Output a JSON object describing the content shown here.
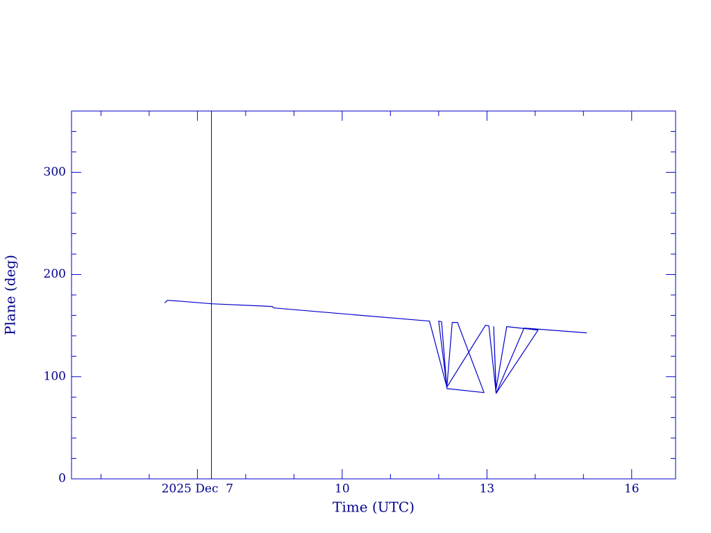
{
  "chart_data": {
    "type": "line",
    "xlabel": "Time (UTC)",
    "ylabel": "Plane (deg)",
    "x": [
      6.32,
      6.38,
      6.59,
      7.29,
      8.55,
      8.58,
      11.81,
      12.17,
      12.0,
      12.06,
      12.17,
      12.94,
      12.39,
      12.28,
      12.17,
      12.97,
      13.04,
      13.19,
      13.14,
      13.19,
      13.41,
      14.06,
      13.19,
      13.77,
      15.07
    ],
    "series": [
      {
        "color": "#0000cc",
        "values": [
          172.1,
          174.8,
          174.1,
          171.4,
          168.7,
          167.3,
          154.4,
          89.8,
          154.4,
          153.7,
          88.4,
          84.4,
          153.1,
          153.1,
          89.8,
          150.3,
          149.7,
          83.7,
          149.0,
          88.0,
          149.0,
          145.6,
          83.7,
          147.6,
          142.9
        ]
      }
    ],
    "vline": 7.29,
    "xlim": [
      4.39,
      16.91
    ],
    "ylim": [
      0,
      360
    ],
    "xticks": [
      {
        "value": 7,
        "label": "2025 Dec  7"
      },
      10,
      13,
      16
    ],
    "yticks": [
      0,
      100,
      200,
      300
    ],
    "xminorticks": [
      5,
      6,
      8,
      9,
      11,
      12,
      14,
      15
    ],
    "yminorticks": [
      20,
      40,
      60,
      80,
      120,
      140,
      160,
      180,
      220,
      240,
      260,
      280,
      320,
      340
    ],
    "axis_color": "#0000cc",
    "text_color": "#00008b"
  }
}
